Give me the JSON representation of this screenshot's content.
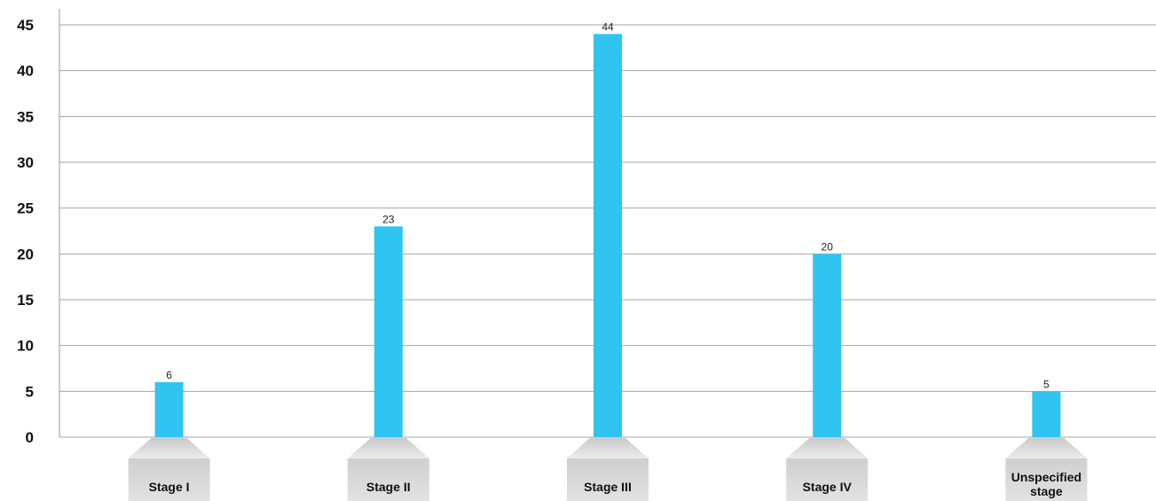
{
  "chart_data": {
    "type": "bar",
    "categories": [
      "Stage I",
      "Stage II",
      "Stage III",
      "Stage IV",
      "Unspecified stage"
    ],
    "category_label_lines": [
      [
        "Stage I"
      ],
      [
        "Stage II"
      ],
      [
        "Stage III"
      ],
      [
        "Stage IV"
      ],
      [
        "Unspecified",
        "stage"
      ]
    ],
    "values": [
      6,
      23,
      44,
      20,
      5
    ],
    "data_labels": [
      "6",
      "23",
      "44",
      "20",
      "5"
    ],
    "yticks": [
      "0",
      "5",
      "10",
      "15",
      "20",
      "25",
      "30",
      "35",
      "40",
      "45"
    ],
    "ylim": [
      0,
      45
    ],
    "grid": true,
    "bar_color": "#30c4f0",
    "label_box_color": "#d6d6d6"
  }
}
